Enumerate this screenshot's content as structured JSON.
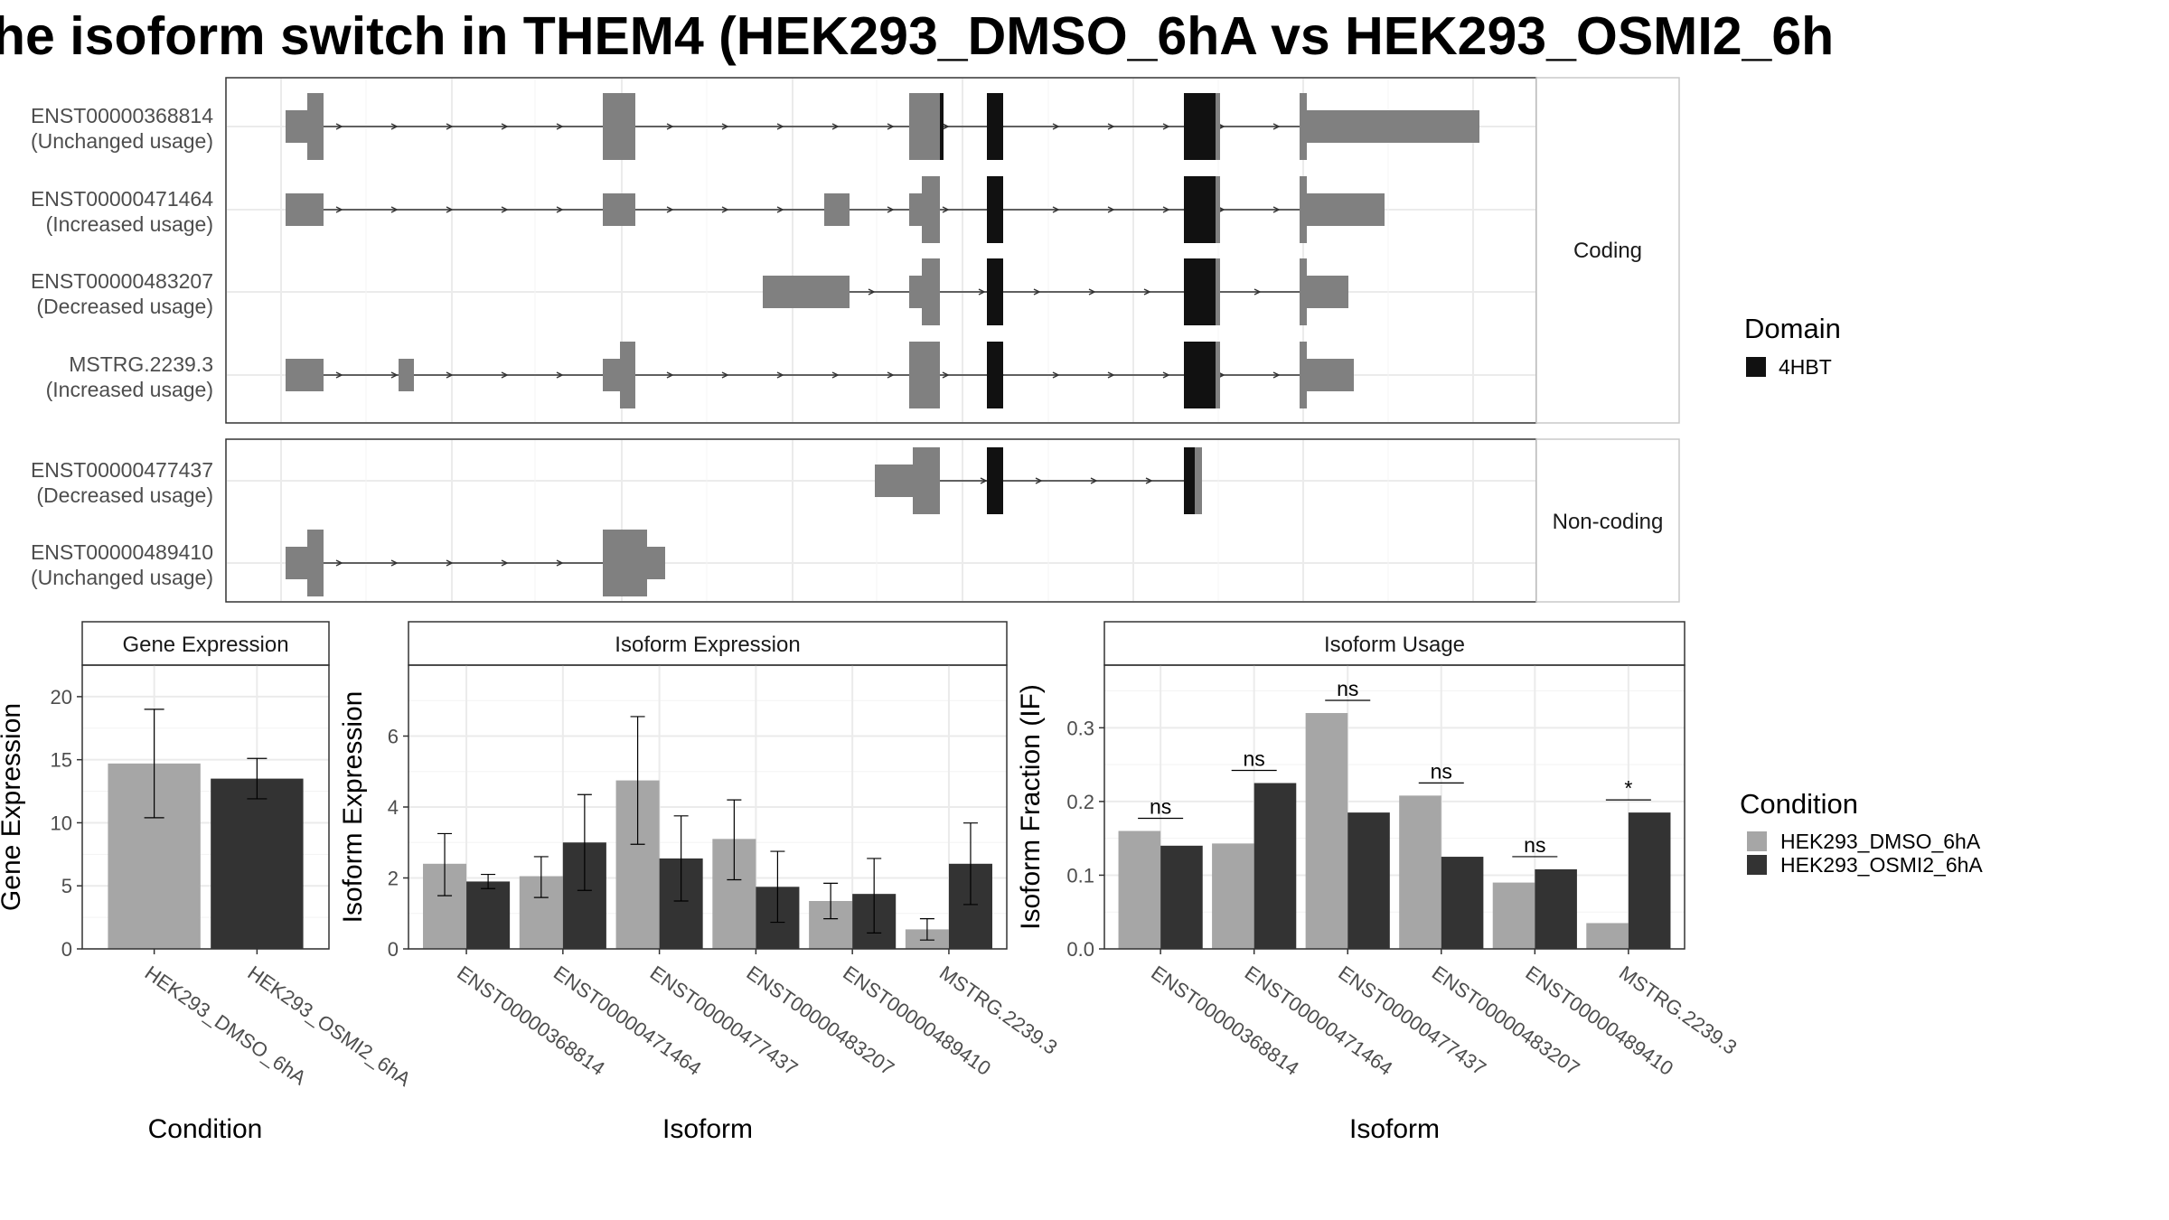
{
  "title": "he isoform switch in THEM4 (HEK293_DMSO_6hA vs HEK293_OSMI2_6h",
  "colors": {
    "dmso": "#a6a6a6",
    "osmi": "#333333",
    "exon": "#808080",
    "domain": "#111111",
    "grid": "#ebebeb",
    "strip": "#ffffff"
  },
  "structure": {
    "coding_label": "Coding",
    "noncoding_label": "Non-coding",
    "transcripts": [
      {
        "id": "ENST00000368814",
        "usage": "(Unchanged usage)",
        "group": "coding"
      },
      {
        "id": "ENST00000471464",
        "usage": "(Increased usage)",
        "group": "coding"
      },
      {
        "id": "ENST00000483207",
        "usage": "(Decreased usage)",
        "group": "coding"
      },
      {
        "id": "MSTRG.2239.3",
        "usage": "(Increased usage)",
        "group": "coding"
      },
      {
        "id": "ENST00000477437",
        "usage": "(Decreased usage)",
        "group": "noncoding"
      },
      {
        "id": "ENST00000489410",
        "usage": "(Unchanged usage)",
        "group": "noncoding"
      }
    ]
  },
  "legend_domain": {
    "title": "Domain",
    "items": [
      {
        "label": "4HBT",
        "color": "#111111"
      }
    ]
  },
  "legend_condition": {
    "title": "Condition",
    "items": [
      {
        "label": "HEK293_DMSO_6hA",
        "color": "#a6a6a6"
      },
      {
        "label": "HEK293_OSMI2_6hA",
        "color": "#333333"
      }
    ]
  },
  "chart_data": [
    {
      "type": "bar",
      "title": "Gene Expression",
      "xlabel": "Condition",
      "ylabel": "Gene Expression",
      "ylim": [
        0,
        22.5
      ],
      "yticks": [
        0,
        5,
        10,
        15,
        20
      ],
      "categories": [
        "HEK293_DMSO_6hA",
        "HEK293_OSMI2_6hA"
      ],
      "values": [
        14.7,
        13.5
      ],
      "err_low": [
        10.4,
        11.9
      ],
      "err_high": [
        19.0,
        15.1
      ]
    },
    {
      "type": "bar",
      "title": "Isoform Expression",
      "xlabel": "Isoform",
      "ylabel": "Isoform Expression",
      "ylim": [
        0,
        8
      ],
      "yticks": [
        0,
        2,
        4,
        6
      ],
      "categories": [
        "ENST00000368814",
        "ENST00000471464",
        "ENST00000477437",
        "ENST00000483207",
        "ENST00000489410",
        "MSTRG.2239.3"
      ],
      "series": [
        {
          "name": "HEK293_DMSO_6hA",
          "values": [
            2.4,
            2.05,
            4.75,
            3.1,
            1.35,
            0.55
          ],
          "err_low": [
            1.5,
            1.45,
            2.95,
            1.95,
            0.85,
            0.25
          ],
          "err_high": [
            3.25,
            2.6,
            6.55,
            4.2,
            1.85,
            0.85
          ]
        },
        {
          "name": "HEK293_OSMI2_6hA",
          "values": [
            1.9,
            3.0,
            2.55,
            1.75,
            1.55,
            2.4
          ],
          "err_low": [
            1.7,
            1.65,
            1.35,
            0.75,
            0.45,
            1.25
          ],
          "err_high": [
            2.1,
            4.35,
            3.75,
            2.75,
            2.55,
            3.55
          ]
        }
      ]
    },
    {
      "type": "bar",
      "title": "Isoform Usage",
      "xlabel": "Isoform",
      "ylabel": "Isoform Fraction (IF)",
      "ylim": [
        0,
        0.385
      ],
      "yticks": [
        0.0,
        0.1,
        0.2,
        0.3
      ],
      "categories": [
        "ENST00000368814",
        "ENST00000471464",
        "ENST00000477437",
        "ENST00000483207",
        "ENST00000489410",
        "MSTRG.2239.3"
      ],
      "series": [
        {
          "name": "HEK293_DMSO_6hA",
          "values": [
            0.16,
            0.143,
            0.32,
            0.208,
            0.09,
            0.035
          ]
        },
        {
          "name": "HEK293_OSMI2_6hA",
          "values": [
            0.14,
            0.225,
            0.185,
            0.125,
            0.108,
            0.185
          ]
        }
      ],
      "significance": [
        "ns",
        "ns",
        "ns",
        "ns",
        "ns",
        "*"
      ]
    }
  ]
}
